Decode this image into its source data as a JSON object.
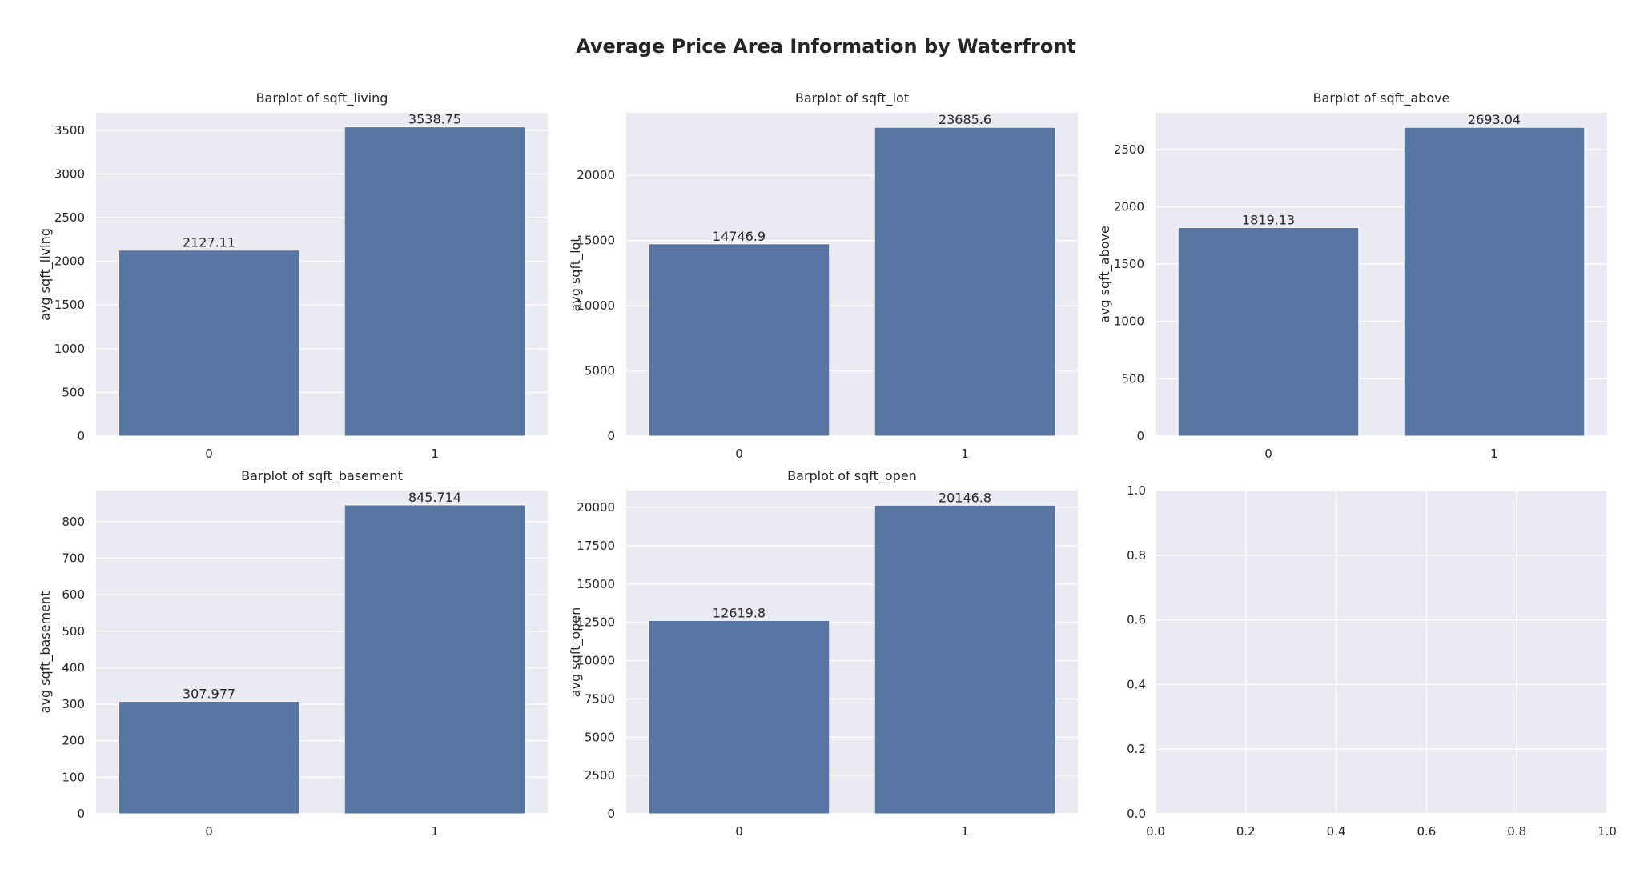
{
  "figure": {
    "title": "Average Price Area Information by Waterfront",
    "colors": {
      "bar": "#5975a4",
      "axes_bg": "#eaeaf2",
      "grid": "#ffffff",
      "text": "#262626"
    }
  },
  "chart_data": [
    {
      "type": "bar",
      "title": "Barplot of sqft_living",
      "xlabel": "",
      "ylabel": "avg sqft_living",
      "categories": [
        "0",
        "1"
      ],
      "values": [
        2127.11,
        3538.75
      ],
      "value_labels": [
        "2127.11",
        "3538.75"
      ],
      "ylim": [
        0,
        3700
      ],
      "yticks": [
        0,
        500,
        1000,
        1500,
        2000,
        2500,
        3000,
        3500
      ],
      "grid": true
    },
    {
      "type": "bar",
      "title": "Barplot of sqft_lot",
      "xlabel": "",
      "ylabel": "avg sqft_lot",
      "categories": [
        "0",
        "1"
      ],
      "values": [
        14746.9,
        23685.6
      ],
      "value_labels": [
        "14746.9",
        "23685.6"
      ],
      "ylim": [
        0,
        24800
      ],
      "yticks": [
        0,
        5000,
        10000,
        15000,
        20000
      ],
      "grid": true
    },
    {
      "type": "bar",
      "title": "Barplot of sqft_above",
      "xlabel": "",
      "ylabel": "avg sqft_above",
      "categories": [
        "0",
        "1"
      ],
      "values": [
        1819.13,
        2693.04
      ],
      "value_labels": [
        "1819.13",
        "2693.04"
      ],
      "ylim": [
        0,
        2820
      ],
      "yticks": [
        0,
        500,
        1000,
        1500,
        2000,
        2500
      ],
      "grid": true
    },
    {
      "type": "bar",
      "title": "Barplot of sqft_basement",
      "xlabel": "",
      "ylabel": "avg sqft_basement",
      "categories": [
        "0",
        "1"
      ],
      "values": [
        307.977,
        845.714
      ],
      "value_labels": [
        "307.977",
        "845.714"
      ],
      "ylim": [
        0,
        885
      ],
      "yticks": [
        0,
        100,
        200,
        300,
        400,
        500,
        600,
        700,
        800
      ],
      "grid": true
    },
    {
      "type": "bar",
      "title": "Barplot of sqft_open",
      "xlabel": "",
      "ylabel": "avg sqft_open",
      "categories": [
        "0",
        "1"
      ],
      "values": [
        12619.8,
        20146.8
      ],
      "value_labels": [
        "12619.8",
        "20146.8"
      ],
      "ylim": [
        0,
        21100
      ],
      "yticks": [
        0,
        2500,
        5000,
        7500,
        10000,
        12500,
        15000,
        17500,
        20000
      ],
      "grid": true
    },
    {
      "type": "empty",
      "title": "",
      "xlabel": "",
      "ylabel": "",
      "xlim": [
        0,
        1
      ],
      "ylim": [
        0,
        1
      ],
      "xticks": [
        "0.0",
        "0.2",
        "0.4",
        "0.6",
        "0.8",
        "1.0"
      ],
      "yticks": [
        "0.0",
        "0.2",
        "0.4",
        "0.6",
        "0.8",
        "1.0"
      ],
      "grid": true
    }
  ]
}
